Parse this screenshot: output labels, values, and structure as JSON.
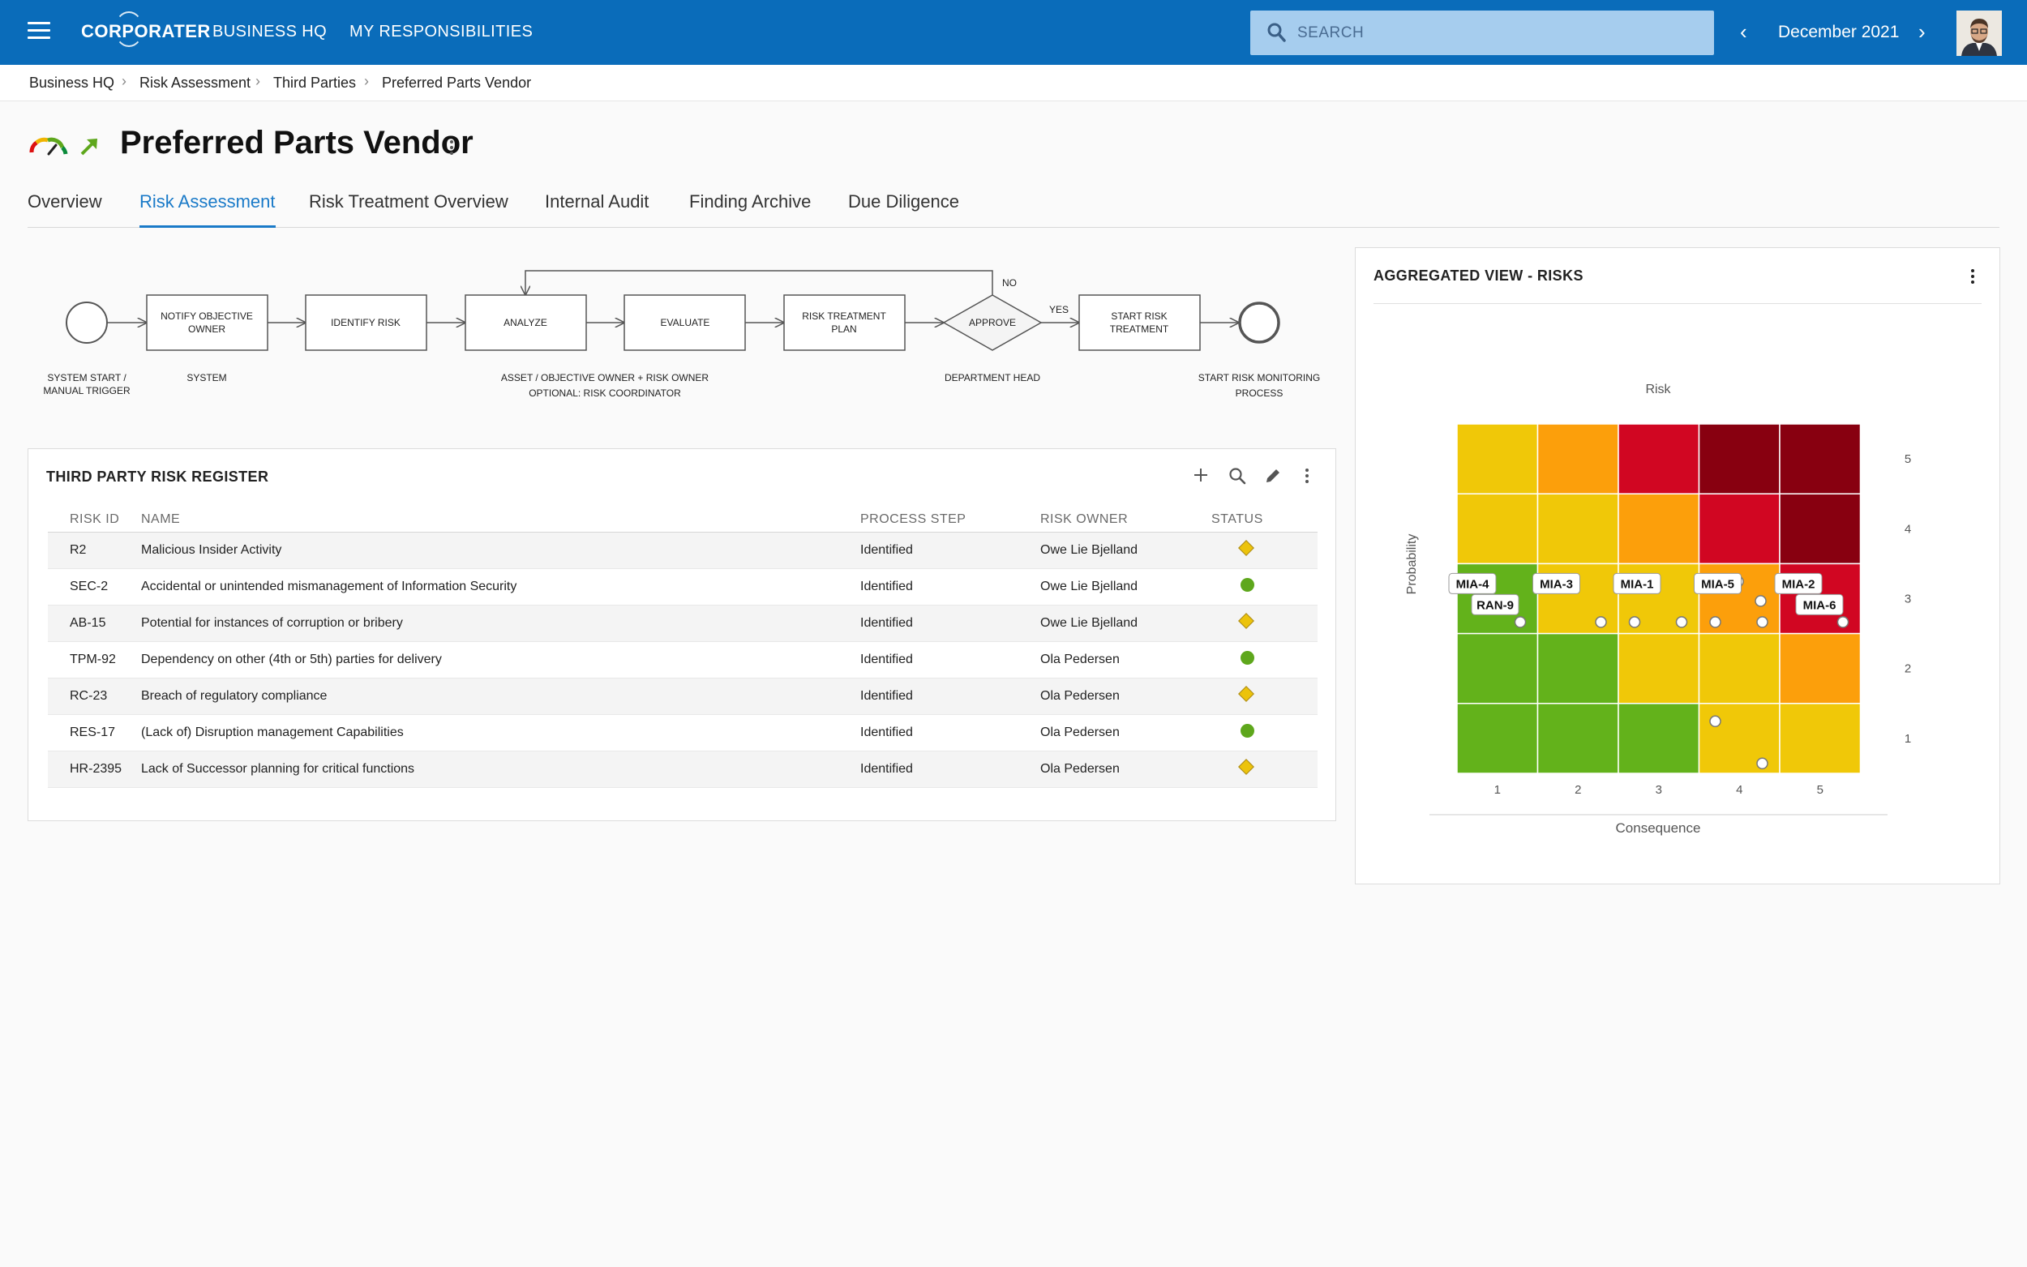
{
  "app": {
    "logo_text": "CORPORATER"
  },
  "nav": {
    "business_hq": "BUSINESS HQ",
    "my_responsibilities": "MY RESPONSIBILITIES"
  },
  "search": {
    "placeholder": "SEARCH"
  },
  "period": {
    "label": "December 2021",
    "prev_icon": "chevron-left-icon",
    "next_icon": "chevron-right-icon"
  },
  "breadcrumb": [
    "Business HQ",
    "Risk Assessment",
    "Third Parties",
    "Preferred Parts Vendor"
  ],
  "page": {
    "title": "Preferred Parts Vendor"
  },
  "tabs": [
    "Overview",
    "Risk Assessment",
    "Risk Treatment Overview",
    "Internal Audit",
    "Finding Archive",
    "Due Diligence"
  ],
  "active_tab": "Risk Assessment",
  "process": {
    "boxes": [
      "NOTIFY OBJECTIVE OWNER",
      "IDENTIFY RISK",
      "ANALYZE",
      "EVALUATE",
      "RISK TREATMENT PLAN",
      "APPROVE",
      "START RISK TREATMENT"
    ],
    "branch_no": "NO",
    "branch_yes": "YES",
    "lanes": {
      "start": "SYSTEM START / MANUAL TRIGGER",
      "system": "SYSTEM",
      "owners_1": "ASSET / OBJECTIVE OWNER + RISK OWNER",
      "owners_2": "OPTIONAL: RISK COORDINATOR",
      "head": "DEPARTMENT HEAD",
      "end_1": "START RISK MONITORING",
      "end_2": "PROCESS"
    }
  },
  "register": {
    "title": "THIRD PARTY RISK REGISTER",
    "columns": [
      "RISK ID",
      "NAME",
      "PROCESS STEP",
      "RISK OWNER",
      "STATUS"
    ],
    "rows": [
      {
        "id": "R2",
        "name": "Malicious Insider Activity",
        "step": "Identified",
        "owner": "Owe Lie Bjelland",
        "status": "yellow-diamond"
      },
      {
        "id": "SEC-2",
        "name": "Accidental or unintended mismanagement of Information Security",
        "step": "Identified",
        "owner": "Owe Lie Bjelland",
        "status": "green-circle"
      },
      {
        "id": "AB-15",
        "name": "Potential for instances of corruption or bribery",
        "step": "Identified",
        "owner": "Owe Lie Bjelland",
        "status": "yellow-diamond"
      },
      {
        "id": "TPM-92",
        "name": "Dependency on other (4th or 5th) parties for delivery",
        "step": "Identified",
        "owner": "Ola Pedersen",
        "status": "green-circle"
      },
      {
        "id": "RC-23",
        "name": "Breach of regulatory compliance",
        "step": "Identified",
        "owner": "Ola Pedersen",
        "status": "yellow-diamond"
      },
      {
        "id": "RES-17",
        "name": "(Lack of) Disruption management Capabilities",
        "step": "Identified",
        "owner": "Ola Pedersen",
        "status": "green-circle"
      },
      {
        "id": "HR-2395",
        "name": "Lack of Successor planning for critical functions",
        "step": "Identified",
        "owner": "Ola Pedersen",
        "status": "yellow-diamond"
      }
    ]
  },
  "aggregated": {
    "title": "AGGREGATED VIEW - RISKS",
    "colors": {
      "green": "#63b21b",
      "yellow": "#f0c808",
      "orange": "#fc9f0b",
      "red": "#d10622",
      "darkred": "#880010"
    }
  },
  "chart_data": {
    "type": "heatmap",
    "title": "Risk",
    "xlabel": "Consequence",
    "ylabel": "Probability",
    "x_ticks": [
      "1",
      "2",
      "3",
      "4",
      "5"
    ],
    "y_ticks": [
      "5",
      "4",
      "3",
      "2",
      "1"
    ],
    "grid_rows_top_to_bottom": [
      [
        "yellow",
        "orange",
        "red",
        "darkred",
        "darkred"
      ],
      [
        "yellow",
        "yellow",
        "orange",
        "red",
        "darkred"
      ],
      [
        "green",
        "yellow",
        "yellow",
        "orange",
        "red"
      ],
      [
        "green",
        "green",
        "yellow",
        "yellow",
        "orange"
      ],
      [
        "green",
        "green",
        "green",
        "yellow",
        "yellow"
      ]
    ],
    "labeled_risks": [
      {
        "label": "MIA-4",
        "consequence": 1,
        "probability": 3
      },
      {
        "label": "RAN-9",
        "consequence": 1,
        "probability": 3
      },
      {
        "label": "MIA-3",
        "consequence": 2,
        "probability": 3
      },
      {
        "label": "MIA-1",
        "consequence": 3,
        "probability": 3
      },
      {
        "label": "MIA-5",
        "consequence": 4,
        "probability": 3
      },
      {
        "label": "MIA-2",
        "consequence": 5,
        "probability": 3
      },
      {
        "label": "MIA-6",
        "consequence": 5,
        "probability": 3
      }
    ],
    "points": [
      {
        "consequence": 1,
        "probability": 3
      },
      {
        "consequence": 2,
        "probability": 3
      },
      {
        "consequence": 3,
        "probability": 3
      },
      {
        "consequence": 3,
        "probability": 3
      },
      {
        "consequence": 4,
        "probability": 3
      },
      {
        "consequence": 4,
        "probability": 3
      },
      {
        "consequence": 4,
        "probability": 3
      },
      {
        "consequence": 4,
        "probability": 3
      },
      {
        "consequence": 5,
        "probability": 3
      },
      {
        "consequence": 4,
        "probability": 1
      },
      {
        "consequence": 4,
        "probability": 1
      }
    ]
  }
}
